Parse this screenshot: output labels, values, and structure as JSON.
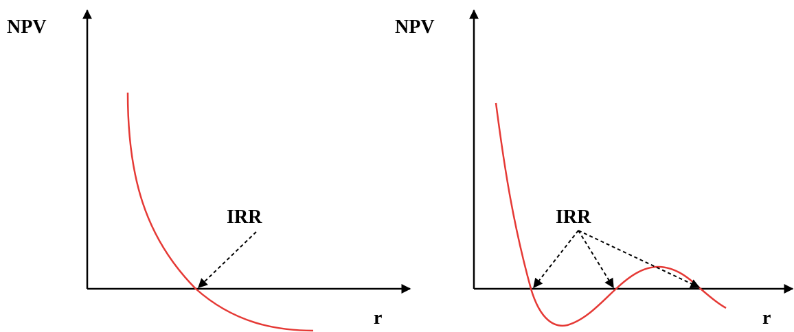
{
  "colors": {
    "axis": "#000000",
    "curve": "#e53935",
    "arrow": "#000000",
    "background": "#ffffff"
  },
  "chart_data": [
    {
      "type": "line",
      "ylabel": "NPV",
      "xlabel": "r",
      "annotation": "IRR",
      "grid": false,
      "legend": "none",
      "curve_shape": "monotonically decreasing, convex; crosses the r-axis once",
      "irr_count": 1
    },
    {
      "type": "line",
      "ylabel": "NPV",
      "xlabel": "r",
      "annotation": "IRR",
      "grid": false,
      "legend": "none",
      "curve_shape": "falls steeply, dips below zero, rises above zero, then falls below zero again",
      "irr_count": 3
    }
  ]
}
